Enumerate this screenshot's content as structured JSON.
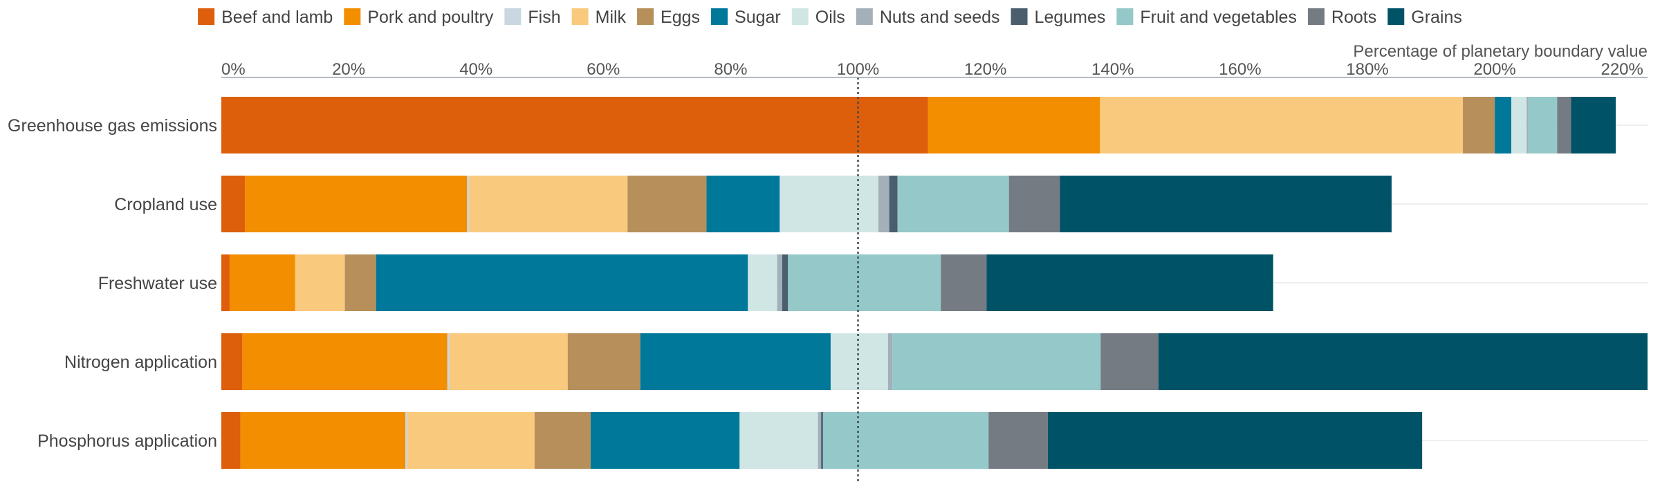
{
  "chart_data": {
    "type": "bar",
    "orientation": "horizontal",
    "stacked": true,
    "xlabel": "Percentage of planetary boundary value",
    "xlim": [
      0,
      224
    ],
    "x_ticks": [
      "0%",
      "20%",
      "40%",
      "60%",
      "80%",
      "100%",
      "120%",
      "140%",
      "160%",
      "180%",
      "200%",
      "220%"
    ],
    "x_tick_values": [
      0,
      20,
      40,
      60,
      80,
      100,
      120,
      140,
      160,
      180,
      200,
      220
    ],
    "reference_line": {
      "value": 100,
      "style": "dotted"
    },
    "legend_position": "top",
    "grid": "horizontal lines behind each bar",
    "categories": [
      "Greenhouse gas emissions",
      "Cropland use",
      "Freshwater use",
      "Nitrogen application",
      "Phosphorus application"
    ],
    "series": [
      {
        "name": "Beef and lamb",
        "color": "#dd5e0b",
        "values": [
          111,
          3.7,
          1.3,
          3.3,
          3.0
        ]
      },
      {
        "name": "Pork and poultry",
        "color": "#f28e00",
        "values": [
          27,
          34.9,
          10.3,
          32.2,
          25.9
        ]
      },
      {
        "name": "Fish",
        "color": "#c8d7e1",
        "values": [
          0,
          0.3,
          0,
          0.3,
          0.3
        ]
      },
      {
        "name": "Milk",
        "color": "#f9c97d",
        "values": [
          57,
          24.9,
          7.8,
          18.6,
          20.0
        ]
      },
      {
        "name": "Eggs",
        "color": "#b68f5b",
        "values": [
          5,
          12.4,
          4.9,
          11.4,
          8.8
        ]
      },
      {
        "name": "Sugar",
        "color": "#ffffff",
        "values": [
          2.6,
          11.5,
          58.4,
          29.9,
          23.4
        ]
      },
      {
        "name": "Oils",
        "color": "#d0e6e4",
        "values": [
          2.4,
          15.5,
          4.6,
          9.0,
          12.3
        ]
      },
      {
        "name": "Nuts and seeds",
        "color": "#a3b0b9",
        "values": [
          0.3,
          1.7,
          0.8,
          0.7,
          0.5
        ]
      },
      {
        "name": "Legumes",
        "color": "#4b5e6e",
        "values": [
          0,
          1.3,
          0.9,
          0,
          0.3
        ]
      },
      {
        "name": "Fruit and vegetables",
        "color": "#94c8c9",
        "values": [
          4.5,
          17.5,
          24.0,
          32.7,
          26.0
        ]
      },
      {
        "name": "Roots",
        "color": "#747b83",
        "values": [
          2.2,
          8.0,
          7.2,
          9.1,
          9.3
        ]
      },
      {
        "name": "Grains",
        "color": "#005367",
        "values": [
          7,
          52.1,
          45.0,
          77.5,
          58.8
        ]
      }
    ]
  }
}
